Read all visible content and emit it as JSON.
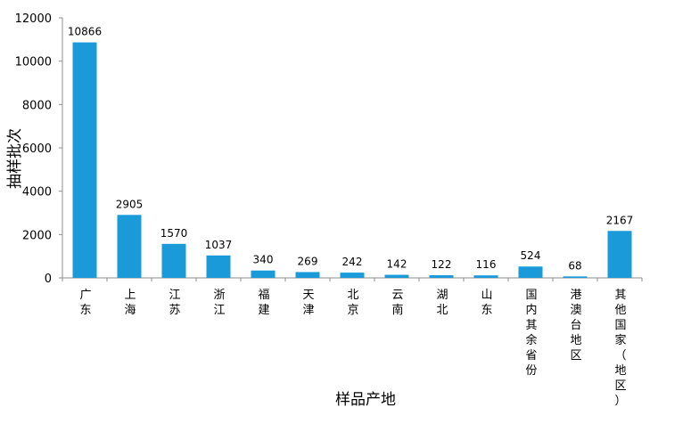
{
  "chart_data": {
    "type": "bar",
    "title": "",
    "xlabel": "样品产地",
    "ylabel": "抽样批次",
    "ylim": [
      0,
      12000
    ],
    "yticks": [
      0,
      2000,
      4000,
      6000,
      8000,
      10000,
      12000
    ],
    "grid": false,
    "legend": "none",
    "bar_color": "#1a9ad9",
    "categories": [
      "广东",
      "上海",
      "江苏",
      "浙江",
      "福建",
      "天津",
      "北京",
      "云南",
      "湖北",
      "山东",
      "国内其余省份",
      "港澳台地区",
      "其他国家（地区）"
    ],
    "values": [
      10866,
      2905,
      1570,
      1037,
      340,
      269,
      242,
      142,
      122,
      116,
      524,
      68,
      2167
    ],
    "data_labels": [
      "10866",
      "2905",
      "1570",
      "1037",
      "340",
      "269",
      "242",
      "142",
      "122",
      "116",
      "524",
      "68",
      "2167"
    ]
  }
}
